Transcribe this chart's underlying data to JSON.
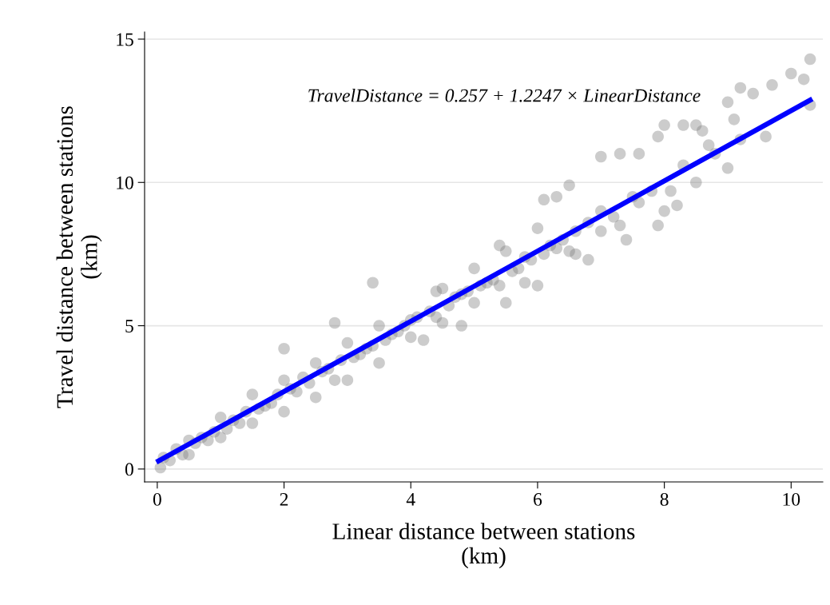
{
  "chart_data": {
    "type": "scatter",
    "xlabel": "Linear distance between stations\n(km)",
    "ylabel": "Travel distance between stations\n(km)",
    "annotations": [
      "TravelDistance = 0.257 + 1.2247 × LinearDistance"
    ],
    "xlim": [
      -0.2,
      10.5
    ],
    "ylim": [
      -0.45,
      15.25
    ],
    "xticks": [
      0,
      2,
      4,
      6,
      8,
      10
    ],
    "yticks": [
      0,
      5,
      10,
      15
    ],
    "grid": "y",
    "series": [
      {
        "marker": "circle",
        "color": "#808080",
        "x": [
          0.05,
          0.1,
          0.2,
          0.3,
          0.4,
          0.5,
          0.5,
          0.6,
          0.7,
          0.8,
          0.9,
          1.0,
          1.0,
          1.1,
          1.2,
          1.3,
          1.4,
          1.5,
          1.5,
          1.6,
          1.7,
          1.8,
          1.9,
          2.0,
          2.0,
          2.0,
          2.1,
          2.2,
          2.3,
          2.4,
          2.5,
          2.5,
          2.6,
          2.7,
          2.8,
          2.8,
          2.9,
          3.0,
          3.0,
          3.1,
          3.2,
          3.3,
          3.4,
          3.4,
          3.5,
          3.5,
          3.6,
          3.7,
          3.8,
          3.9,
          4.0,
          4.0,
          4.1,
          4.2,
          4.3,
          4.4,
          4.4,
          4.5,
          4.5,
          4.6,
          4.7,
          4.8,
          4.8,
          4.9,
          5.0,
          5.0,
          5.1,
          5.2,
          5.3,
          5.4,
          5.4,
          5.5,
          5.5,
          5.6,
          5.7,
          5.8,
          5.8,
          5.9,
          6.0,
          6.0,
          6.1,
          6.1,
          6.2,
          6.3,
          6.3,
          6.4,
          6.5,
          6.5,
          6.6,
          6.6,
          6.8,
          6.8,
          7.0,
          7.0,
          7.0,
          7.2,
          7.3,
          7.3,
          7.4,
          7.5,
          7.6,
          7.6,
          7.8,
          7.9,
          7.9,
          8.0,
          8.0,
          8.1,
          8.2,
          8.3,
          8.3,
          8.5,
          8.5,
          8.6,
          8.7,
          8.8,
          9.0,
          9.0,
          9.1,
          9.2,
          9.2,
          9.4,
          9.6,
          9.7,
          10.0,
          10.2,
          10.3,
          10.3
        ],
        "values": [
          0.05,
          0.4,
          0.3,
          0.7,
          0.5,
          0.5,
          1.0,
          0.9,
          1.1,
          1.0,
          1.3,
          1.1,
          1.8,
          1.4,
          1.7,
          1.6,
          2.0,
          1.6,
          2.6,
          2.1,
          2.2,
          2.3,
          2.6,
          2.0,
          3.1,
          4.2,
          2.8,
          2.7,
          3.2,
          3.0,
          2.5,
          3.7,
          3.4,
          3.5,
          3.1,
          5.1,
          3.8,
          3.1,
          4.4,
          3.9,
          4.0,
          4.2,
          4.3,
          6.5,
          3.7,
          5.0,
          4.5,
          4.7,
          4.8,
          5.0,
          4.6,
          5.2,
          5.3,
          4.5,
          5.5,
          5.3,
          6.2,
          5.1,
          6.3,
          5.7,
          6.0,
          5.0,
          6.1,
          6.2,
          5.8,
          7.0,
          6.4,
          6.5,
          6.6,
          6.4,
          7.8,
          5.8,
          7.6,
          6.9,
          7.0,
          6.5,
          7.4,
          7.3,
          6.4,
          8.4,
          7.5,
          9.4,
          7.8,
          7.7,
          9.5,
          8.0,
          7.6,
          9.9,
          7.5,
          8.3,
          8.6,
          7.3,
          8.3,
          9.0,
          10.9,
          8.8,
          8.5,
          11.0,
          8.0,
          9.5,
          9.3,
          11.0,
          9.7,
          8.5,
          11.6,
          9.0,
          12.0,
          9.7,
          9.2,
          10.6,
          12.0,
          10.0,
          12.0,
          11.8,
          11.3,
          11.0,
          10.5,
          12.8,
          12.2,
          11.5,
          13.3,
          13.1,
          11.6,
          13.4,
          13.8,
          13.6,
          14.3,
          12.7
        ]
      },
      {
        "type": "line",
        "color": "#0000ff",
        "x": [
          0.02,
          10.3
        ],
        "values": [
          0.28,
          12.87
        ]
      }
    ]
  }
}
